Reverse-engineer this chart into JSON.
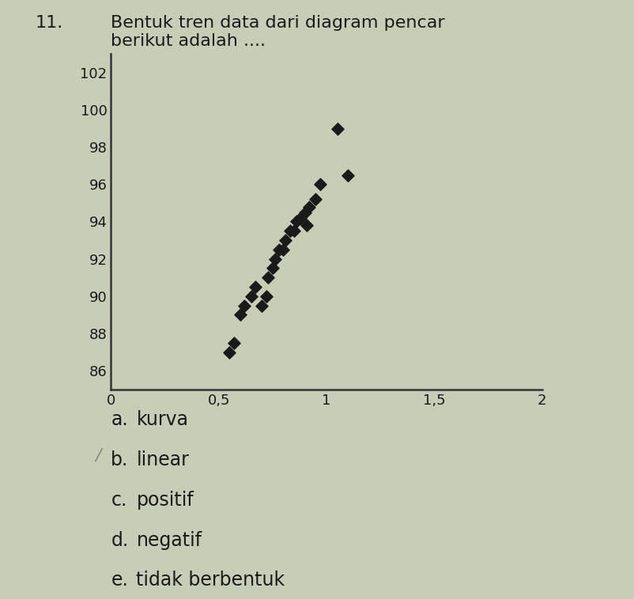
{
  "title_number": "11.",
  "scatter_x": [
    0.55,
    0.57,
    0.6,
    0.62,
    0.65,
    0.67,
    0.7,
    0.72,
    0.73,
    0.75,
    0.76,
    0.78,
    0.8,
    0.81,
    0.83,
    0.85,
    0.86,
    0.88,
    0.9,
    0.91,
    0.92,
    0.95,
    0.97,
    1.05,
    1.1
  ],
  "scatter_y": [
    87.0,
    87.5,
    89.0,
    89.5,
    90.0,
    90.5,
    89.5,
    90.0,
    91.0,
    91.5,
    92.0,
    92.5,
    92.5,
    93.0,
    93.5,
    93.5,
    94.0,
    94.2,
    94.5,
    93.8,
    94.8,
    95.2,
    96.0,
    99.0,
    96.5
  ],
  "xlim": [
    0,
    2
  ],
  "ylim": [
    85,
    103
  ],
  "xticks": [
    0,
    0.5,
    1,
    1.5,
    2
  ],
  "xtick_labels": [
    "0",
    "0,5",
    "1",
    "1,5",
    "2"
  ],
  "yticks": [
    86,
    88,
    90,
    92,
    94,
    96,
    98,
    100,
    102
  ],
  "ytick_labels": [
    "86",
    "88",
    "90",
    "92",
    "94",
    "96",
    "98",
    "100",
    "102"
  ],
  "marker_color": "#1a1a1a",
  "marker_size": 60,
  "options": [
    "a.  kurva",
    "b.  linear",
    "c.  positif",
    "d.  negatif",
    "e.  tidak berbentuk"
  ],
  "selected_option_idx": 1,
  "bg_color": "#c8cdb8",
  "font_color": "#1a1a1a",
  "title_fontsize": 16,
  "tick_fontsize": 13,
  "option_fontsize": 17
}
